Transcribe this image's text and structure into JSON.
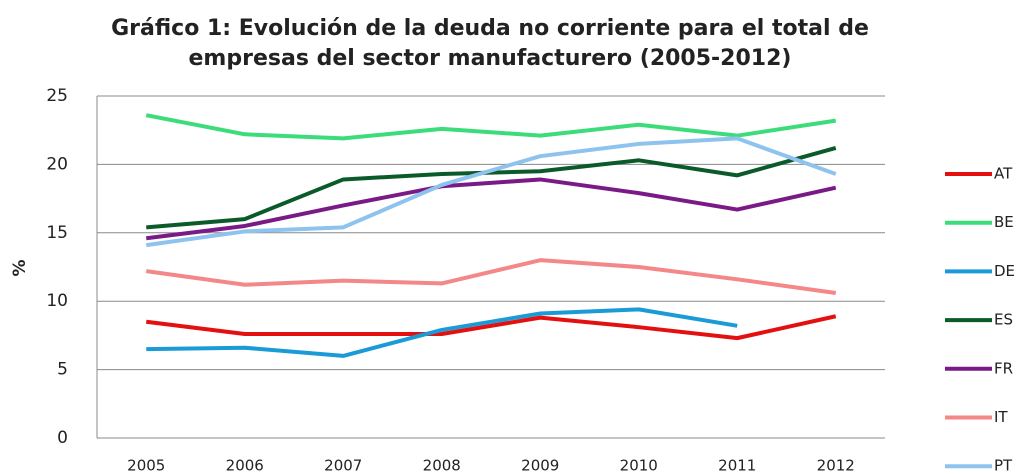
{
  "chart_data": {
    "type": "line",
    "title": "Gráfico 1: Evolución de la deuda no corriente para el total de empresas del sector manufacturero (2005-2012)",
    "y_label": "%",
    "categories": [
      "2005",
      "2006",
      "2007",
      "2008",
      "2009",
      "2010",
      "2011",
      "2012"
    ],
    "ylim": [
      0,
      25
    ],
    "yticks": [
      0,
      5,
      10,
      15,
      20,
      25
    ],
    "grid": true,
    "legend": "right",
    "series": [
      {
        "name": "AT",
        "color": "#e41010",
        "values": [
          8.5,
          7.6,
          7.6,
          7.6,
          8.8,
          8.1,
          7.3,
          8.9
        ]
      },
      {
        "name": "BE",
        "color": "#3ddc7a",
        "values": [
          23.6,
          22.2,
          21.9,
          22.6,
          22.1,
          22.9,
          22.1,
          23.2
        ]
      },
      {
        "name": "DE",
        "color": "#1a9bd7",
        "values": [
          6.5,
          6.6,
          6.0,
          7.9,
          9.1,
          9.4,
          8.2,
          null
        ]
      },
      {
        "name": "ES",
        "color": "#0b5a2a",
        "values": [
          15.4,
          16.0,
          18.9,
          19.3,
          19.5,
          20.3,
          19.2,
          21.2
        ]
      },
      {
        "name": "FR",
        "color": "#7a1a86",
        "values": [
          14.6,
          15.5,
          17.0,
          18.4,
          18.9,
          17.9,
          16.7,
          18.3
        ]
      },
      {
        "name": "IT",
        "color": "#f48787",
        "values": [
          12.2,
          11.2,
          11.5,
          11.3,
          13.0,
          12.5,
          11.6,
          10.6
        ]
      },
      {
        "name": "PT",
        "color": "#8ec3ee",
        "values": [
          14.1,
          15.1,
          15.4,
          18.5,
          20.6,
          21.5,
          21.9,
          19.3
        ]
      }
    ]
  }
}
